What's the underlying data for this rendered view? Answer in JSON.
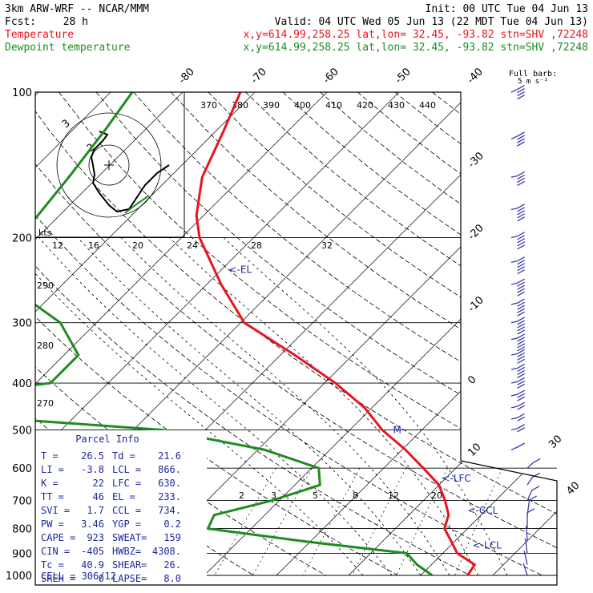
{
  "header": {
    "model": "3km ARW-WRF -- NCAR/MMM",
    "init": "Init: 00 UTC Tue 04 Jun 13",
    "fcst_label": "Fcst:",
    "fcst_hours": "28 h",
    "valid": "Valid: 04 UTC Wed 05 Jun 13 (22 MDT Tue 04 Jun 13)",
    "temp_name": "Temperature",
    "temp_info": "x,y=614.99,258.25   lat,lon= 32.45, -93.82  stn=SHV ,72248",
    "dew_name": "Dewpoint temperature",
    "dew_info": "x,y=614.99,258.25   lat,lon= 32.45, -93.82  stn=SHV ,72248",
    "barb_legend_1": "Full barb:",
    "barb_legend_2": "5 m s⁻¹"
  },
  "colors": {
    "temperature": "#e8141e",
    "dewpoint": "#1e8c1e",
    "parcel_text": "#1c28a0",
    "barbs": "#3a3aa8"
  },
  "chart_data": {
    "type": "line",
    "title": "",
    "y_scale": "log-pressure",
    "pressure_ticks": [
      "100",
      "200",
      "300",
      "400",
      "500",
      "600",
      "700",
      "800",
      "900",
      "1000"
    ],
    "isotherm_labels_top": [
      "-80",
      "-70",
      "-60",
      "-50",
      "-40"
    ],
    "isotherm_labels_right": [
      "-30",
      "-20",
      "-10",
      "0",
      "10"
    ],
    "theta_labels": [
      "370",
      "380",
      "390",
      "400",
      "410",
      "420",
      "430",
      "440"
    ],
    "theta_labels_left": [
      "290",
      "280",
      "270"
    ],
    "mixing_ratio_labels": [
      "2",
      "3",
      "5",
      "8",
      "12",
      "20"
    ],
    "series": [
      {
        "color_key": "temperature",
        "points": [
          [
            100,
            -72.0
          ],
          [
            120,
            -69.0
          ],
          [
            150,
            -65.5
          ],
          [
            180,
            -61.0
          ],
          [
            200,
            -57.5
          ],
          [
            250,
            -48.0
          ],
          [
            300,
            -39.5
          ],
          [
            350,
            -28.0
          ],
          [
            400,
            -18.5
          ],
          [
            450,
            -11.0
          ],
          [
            500,
            -5.5
          ],
          [
            550,
            0.5
          ],
          [
            600,
            5.5
          ],
          [
            650,
            10.0
          ],
          [
            700,
            13.0
          ],
          [
            750,
            15.5
          ],
          [
            800,
            16.8
          ],
          [
            850,
            19.5
          ],
          [
            900,
            22.0
          ],
          [
            950,
            26.0
          ],
          [
            1000,
            26.5
          ]
        ]
      },
      {
        "color_key": "dewpoint",
        "points": [
          [
            100,
            -87.0
          ],
          [
            120,
            -85.5
          ],
          [
            150,
            -84.0
          ],
          [
            180,
            -83.0
          ],
          [
            200,
            -82.5
          ],
          [
            230,
            -83.0
          ],
          [
            260,
            -75.0
          ],
          [
            300,
            -65.0
          ],
          [
            350,
            -58.0
          ],
          [
            400,
            -58.0
          ],
          [
            450,
            -82.0
          ],
          [
            500,
            -36.0
          ],
          [
            550,
            -19.0
          ],
          [
            600,
            -9.0
          ],
          [
            650,
            -6.5
          ],
          [
            700,
            -11.0
          ],
          [
            750,
            -17.0
          ],
          [
            800,
            -16.0
          ],
          [
            850,
            -1.0
          ],
          [
            900,
            15.0
          ],
          [
            950,
            18.0
          ],
          [
            1000,
            21.6
          ]
        ]
      }
    ],
    "annotations": [
      {
        "text": "<-EL",
        "p": 233,
        "t": -49.0
      },
      {
        "text": "M",
        "p": 500,
        "t": -4.0
      },
      {
        "text": "<-LFC",
        "p": 630,
        "t": 9.5
      },
      {
        "text": "<-CCL",
        "p": 734,
        "t": 17.5
      },
      {
        "text": "<-LCL",
        "p": 866,
        "t": 23.0
      }
    ],
    "hodograph": {
      "unit_label": "kts",
      "ring_labels": [
        "12",
        "16",
        "20",
        "24",
        "28",
        "32"
      ],
      "ring_speeds_label": [
        "3",
        "2"
      ],
      "path_black": [
        [
          0.0,
          0.0
        ],
        [
          -0.02,
          0.1
        ],
        [
          -0.05,
          0.2
        ],
        [
          0.05,
          0.3
        ],
        [
          0.1,
          0.45
        ],
        [
          0.08,
          0.55
        ],
        [
          0.12,
          0.62
        ],
        [
          0.2,
          0.75
        ],
        [
          0.3,
          0.8
        ],
        [
          0.4,
          0.9
        ]
      ],
      "path_green": [
        [
          0.0,
          0.0
        ],
        [
          -0.05,
          0.2
        ],
        [
          0.05,
          0.3
        ],
        [
          0.1,
          0.45
        ],
        [
          0.2,
          0.7
        ],
        [
          0.35,
          0.9
        ],
        [
          0.5,
          1.1
        ],
        [
          0.7,
          1.3
        ],
        [
          0.9,
          1.5
        ],
        [
          1.05,
          1.7
        ],
        [
          1.2,
          1.9
        ]
      ]
    },
    "winds": [
      {
        "p": 100,
        "speed": 20,
        "dir": 260
      },
      {
        "p": 125,
        "speed": 20,
        "dir": 260
      },
      {
        "p": 150,
        "speed": 22,
        "dir": 265
      },
      {
        "p": 175,
        "speed": 24,
        "dir": 265
      },
      {
        "p": 200,
        "speed": 26,
        "dir": 265
      },
      {
        "p": 225,
        "speed": 26,
        "dir": 265
      },
      {
        "p": 250,
        "speed": 28,
        "dir": 265
      },
      {
        "p": 275,
        "speed": 28,
        "dir": 265
      },
      {
        "p": 300,
        "speed": 26,
        "dir": 265
      },
      {
        "p": 325,
        "speed": 24,
        "dir": 265
      },
      {
        "p": 350,
        "speed": 20,
        "dir": 265
      },
      {
        "p": 375,
        "speed": 18,
        "dir": 265
      },
      {
        "p": 400,
        "speed": 15,
        "dir": 265
      },
      {
        "p": 425,
        "speed": 13,
        "dir": 265
      },
      {
        "p": 450,
        "speed": 11,
        "dir": 265
      },
      {
        "p": 475,
        "speed": 10,
        "dir": 265
      },
      {
        "p": 500,
        "speed": 8,
        "dir": 265
      },
      {
        "p": 550,
        "speed": 6,
        "dir": 260
      },
      {
        "p": 600,
        "speed": 5,
        "dir": 250
      },
      {
        "p": 650,
        "speed": 4,
        "dir": 240
      },
      {
        "p": 700,
        "speed": 3,
        "dir": 230
      },
      {
        "p": 750,
        "speed": 3,
        "dir": 200
      },
      {
        "p": 800,
        "speed": 3,
        "dir": 180
      },
      {
        "p": 850,
        "speed": 2,
        "dir": 170
      },
      {
        "p": 900,
        "speed": 2,
        "dir": 160
      },
      {
        "p": 950,
        "speed": 2,
        "dir": 150
      },
      {
        "p": 1000,
        "speed": 2,
        "dir": 140
      }
    ],
    "barb_axis_labels": [
      "30",
      "40"
    ]
  },
  "parcel_info": {
    "title": "Parcel Info",
    "rows": [
      [
        "T   =",
        "26.5",
        "Td =",
        "21.6"
      ],
      [
        "LI  =",
        "-3.8",
        "LCL =",
        "866."
      ],
      [
        "K   =",
        "22",
        "LFC =",
        "630."
      ],
      [
        "TT  =",
        "46",
        "EL  =",
        "233."
      ],
      [
        "SVI =",
        "1.7",
        "CCL =",
        "734."
      ],
      [
        "PW  =",
        "3.46",
        "YGP =",
        "0.2"
      ],
      [
        "CAPE =",
        "923",
        "SWEAT=",
        "159"
      ],
      [
        "CIN =",
        "-405",
        "HWBZ=",
        "4308."
      ],
      [
        "Tc  =",
        "40.9",
        "SHEAR=",
        "26."
      ],
      [
        "SREH =",
        "0",
        "LAPSE=",
        "8.0"
      ]
    ],
    "cell": "CELL = 306/12"
  }
}
